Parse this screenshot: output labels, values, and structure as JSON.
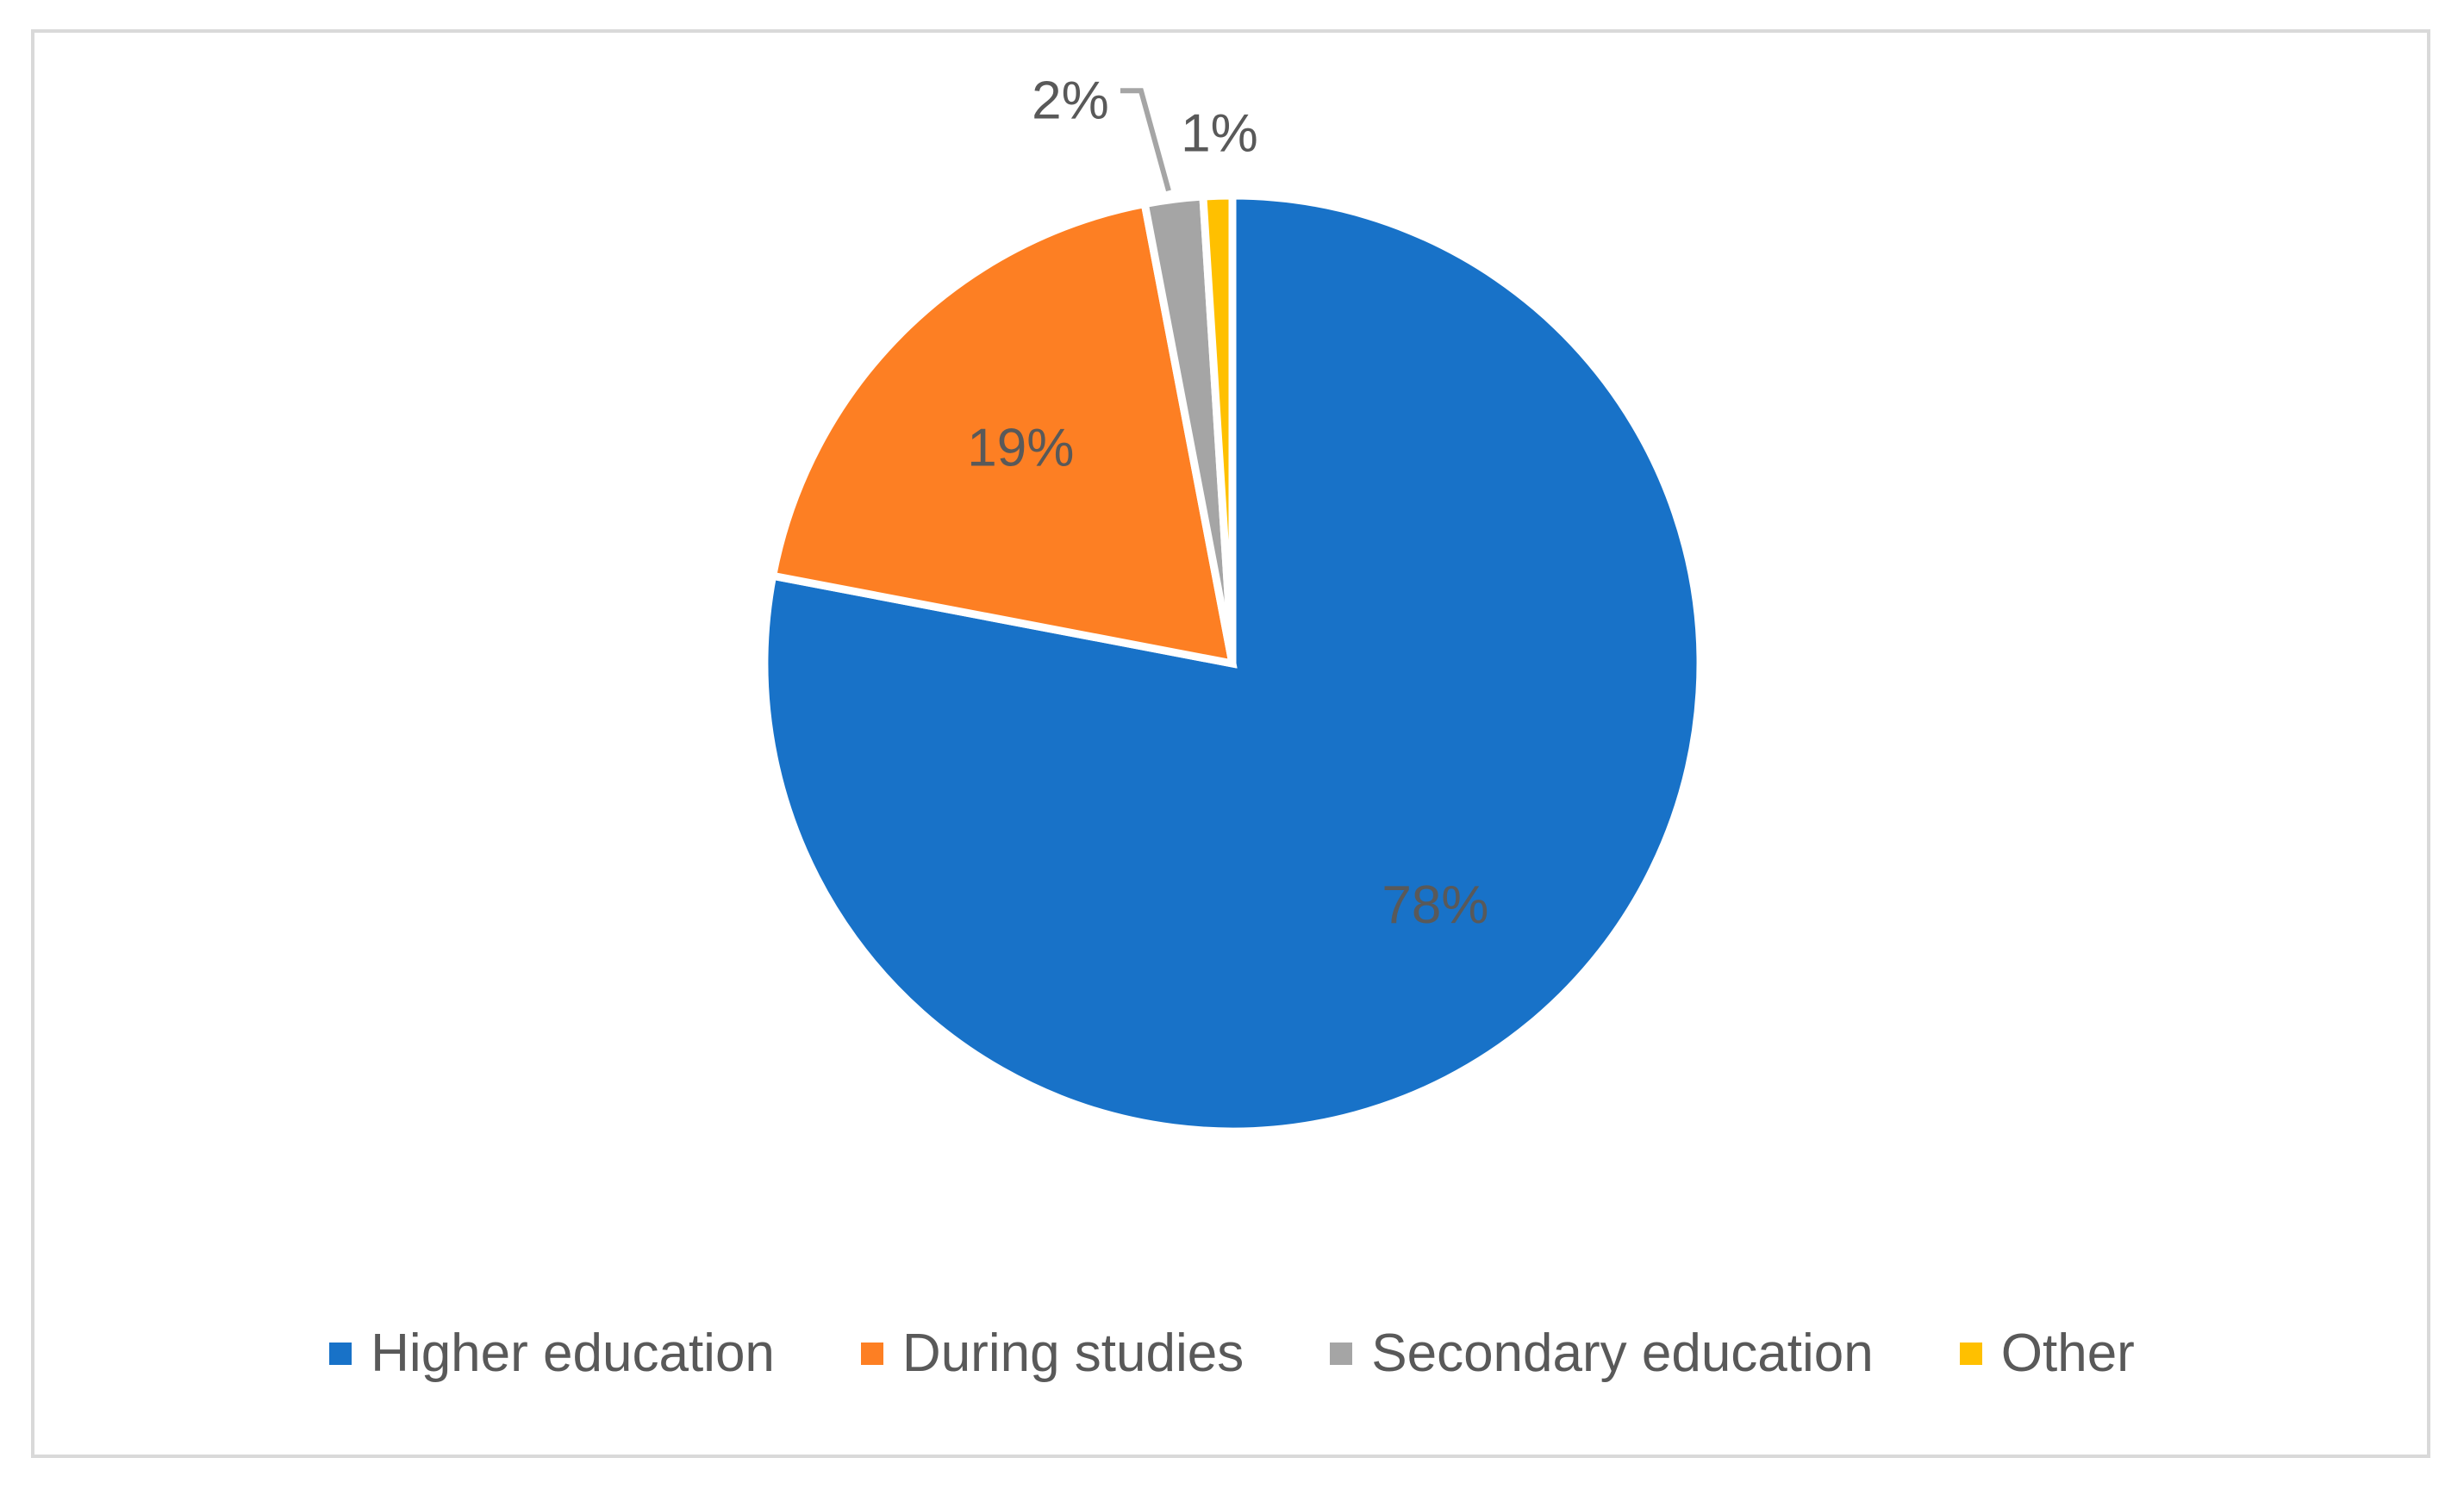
{
  "chart_data": {
    "type": "pie",
    "title": "",
    "categories": [
      "Higher education",
      "During studies",
      "Secondary education",
      "Other"
    ],
    "values": [
      78,
      19,
      2,
      1
    ],
    "data_labels": [
      "78%",
      "19%",
      "2%",
      "1%"
    ],
    "colors": [
      "#1872C8",
      "#FD7F23",
      "#A5A5A5",
      "#FFC000"
    ],
    "start_angle_deg": 0,
    "direction": "clockwise",
    "legend_position": "bottom"
  }
}
